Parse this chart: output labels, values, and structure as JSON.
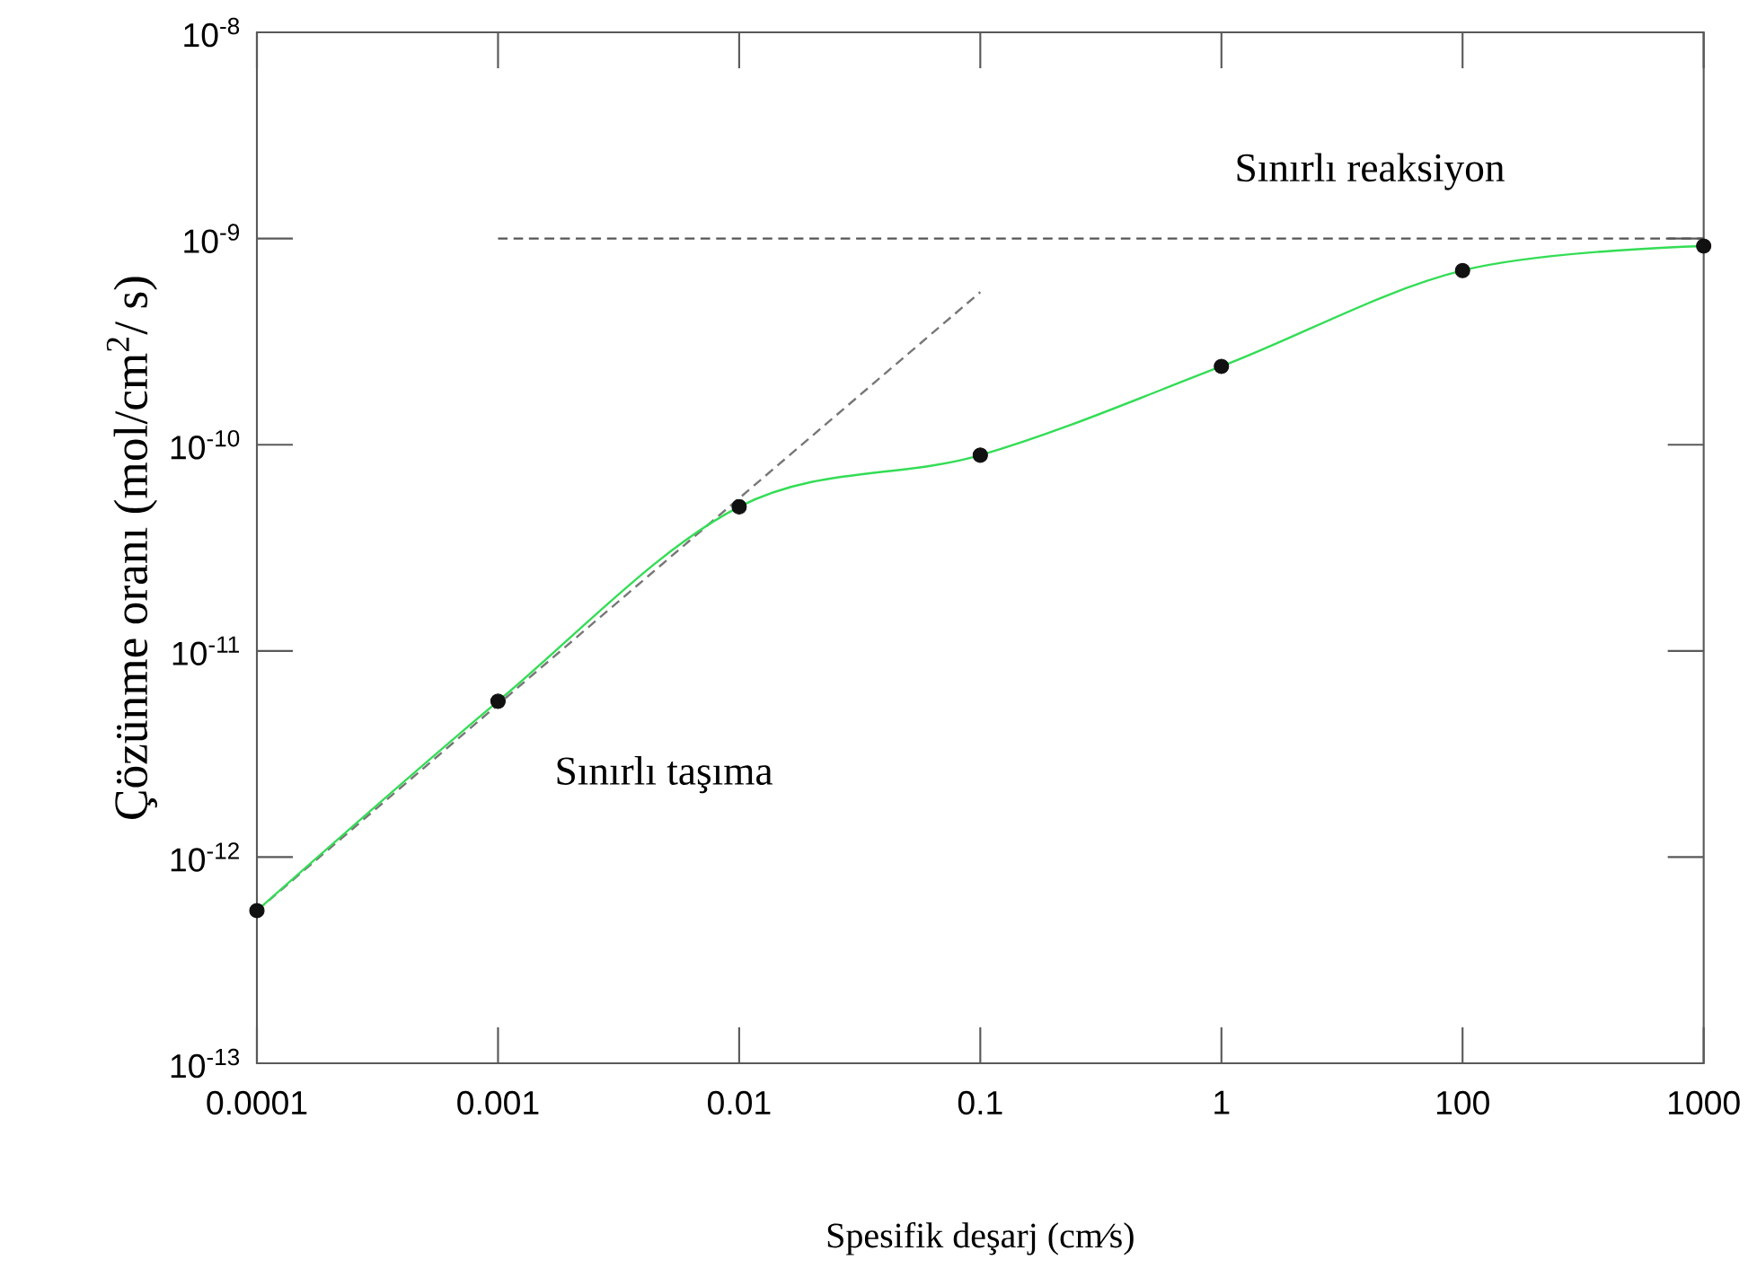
{
  "chart_data": {
    "type": "scatter",
    "xlabel": "Spesifik deşarj (cm∕s)",
    "ylabel": "Çözünme oranı (mol/cm$^{2}$/  s)",
    "log": "y",
    "ylim": [
      1e-13,
      1e-08
    ],
    "categories": [
      "0.0001",
      "0.001",
      "0.01",
      "0.1",
      "1",
      "100",
      "1000"
    ],
    "yticks": [
      {
        "value": 1e-13,
        "label": "10$^{-13}$"
      },
      {
        "value": 1e-12,
        "label": "10$^{-12}$"
      },
      {
        "value": 1e-11,
        "label": "10$^{-11}$"
      },
      {
        "value": 1e-10,
        "label": "10$^{-10}$"
      },
      {
        "value": 1e-09,
        "label": "10$^{-9}$"
      },
      {
        "value": 1e-08,
        "label": "10$^{-8}$"
      }
    ],
    "annotations": [
      "Sınırlı reaksiyon",
      "Sınırlı taşıma"
    ],
    "series": [
      {
        "type": "line",
        "color": "#777777",
        "line_style": "dashed",
        "values": [
          5.5e-13,
          5.5e-12,
          5.5e-11,
          5.5e-10,
          null,
          null,
          null
        ]
      },
      {
        "type": "line",
        "color": "#555555",
        "line_style": "dashed",
        "values": [
          null,
          1e-09,
          1e-09,
          1e-09,
          1e-09,
          1e-09,
          1e-09
        ]
      },
      {
        "type": "line",
        "color": "#33dd55",
        "line_style": "solid",
        "values": [
          5.5e-13,
          5.7e-12,
          5e-11,
          8.9e-11,
          2.4e-10,
          7e-10,
          9.2e-10
        ]
      },
      {
        "color": "#111111",
        "marker": "circle",
        "values": [
          5.5e-13,
          5.7e-12,
          5e-11,
          8.9e-11,
          2.4e-10,
          7e-10,
          9.2e-10
        ]
      }
    ]
  }
}
